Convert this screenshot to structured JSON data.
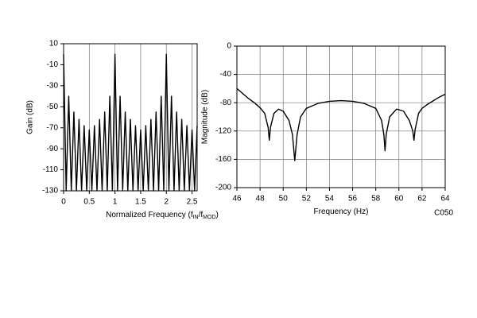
{
  "chart_data": [
    {
      "type": "line",
      "y_label": "Gain (dB)",
      "x_label": [
        "Normalized Frequency (f",
        "IN",
        "/f",
        "MOD",
        ")"
      ],
      "xlim": [
        0,
        2.6
      ],
      "xticks": [
        0,
        0.5,
        1,
        1.5,
        2,
        2.5
      ],
      "ylim": [
        -130,
        10
      ],
      "yticks": [
        10,
        -10,
        -30,
        -50,
        -70,
        -90,
        -110,
        -130
      ],
      "grid": "x",
      "series": [
        {
          "color": "#000000",
          "x": [
            0,
            0.05,
            0.1,
            0.15,
            0.2,
            0.25,
            0.3,
            0.35,
            0.4,
            0.45,
            0.5,
            0.55,
            0.6,
            0.65,
            0.7,
            0.75,
            0.8,
            0.85,
            0.9,
            0.95,
            1,
            1.05,
            1.1,
            1.15,
            1.2,
            1.25,
            1.3,
            1.35,
            1.4,
            1.45,
            1.5,
            1.55,
            1.6,
            1.65,
            1.7,
            1.75,
            1.8,
            1.85,
            1.9,
            1.95,
            2,
            2.05,
            2.1,
            2.15,
            2.2,
            2.25,
            2.3,
            2.35,
            2.4,
            2.45,
            2.5,
            2.55,
            2.6
          ],
          "values": [
            0,
            -130,
            -40,
            -130,
            -55,
            -130,
            -62,
            -130,
            -68,
            -130,
            -72,
            -130,
            -68,
            -130,
            -62,
            -130,
            -55,
            -130,
            -40,
            -130,
            0,
            -130,
            -40,
            -130,
            -55,
            -130,
            -62,
            -130,
            -68,
            -130,
            -72,
            -130,
            -68,
            -130,
            -62,
            -130,
            -55,
            -130,
            -40,
            -130,
            0,
            -130,
            -40,
            -130,
            -55,
            -130,
            -62,
            -130,
            -68,
            -130,
            -72,
            -130,
            -68
          ]
        }
      ]
    },
    {
      "type": "line",
      "y_label": "Magnitude (dB)",
      "x_label": [
        "Frequency (Hz)"
      ],
      "annotation": "C050",
      "xlim": [
        46,
        64
      ],
      "xticks": [
        46,
        48,
        50,
        52,
        54,
        56,
        58,
        60,
        62,
        64
      ],
      "ylim": [
        -200,
        0
      ],
      "yticks": [
        0,
        -40,
        -80,
        -120,
        -160,
        -200
      ],
      "grid": "both",
      "series": [
        {
          "color": "#000000",
          "x": [
            46,
            46.5,
            47,
            47.5,
            48,
            48.4,
            48.7,
            48.8,
            48.9,
            49.2,
            49.6,
            50,
            50.5,
            50.8,
            51,
            51.2,
            51.5,
            52,
            53,
            54,
            55,
            56,
            57,
            58,
            58.5,
            58.7,
            58.8,
            58.9,
            59.2,
            59.8,
            60.4,
            60.9,
            61.2,
            61.3,
            61.4,
            61.7,
            62,
            62.5,
            63,
            63.5,
            64
          ],
          "values": [
            -60,
            -67,
            -74,
            -80,
            -87,
            -95,
            -115,
            -133,
            -115,
            -95,
            -89,
            -92,
            -105,
            -125,
            -162,
            -125,
            -100,
            -88,
            -81,
            -78,
            -77,
            -78,
            -81,
            -88,
            -105,
            -125,
            -148,
            -125,
            -100,
            -89,
            -92,
            -105,
            -120,
            -133,
            -118,
            -95,
            -88,
            -82,
            -77,
            -72,
            -68
          ]
        }
      ]
    }
  ]
}
